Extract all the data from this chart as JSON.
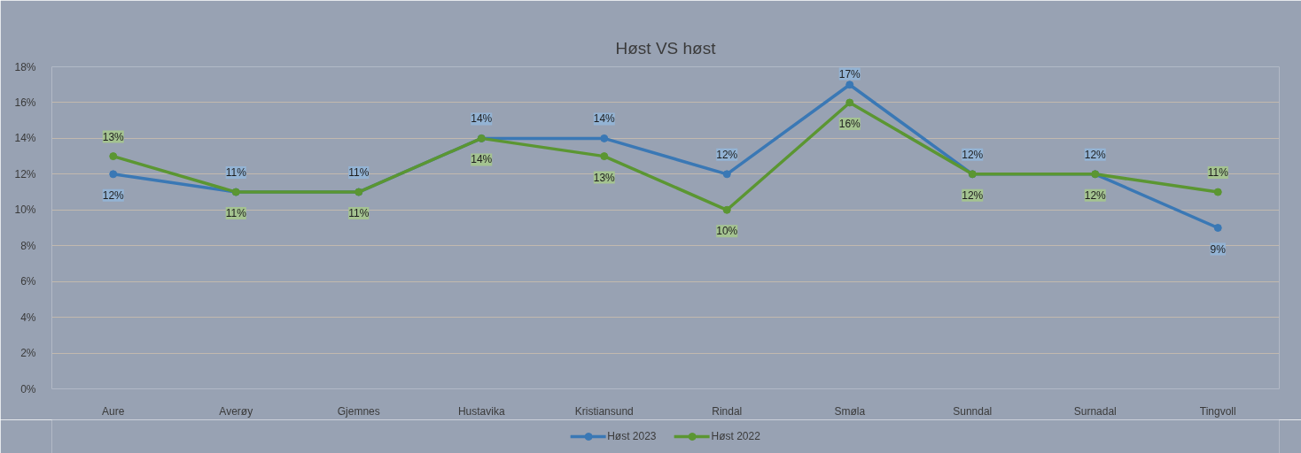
{
  "chart_data": {
    "type": "line",
    "title": "Høst VS høst",
    "categories": [
      "Aure",
      "Averøy",
      "Gjemnes",
      "Hustavika",
      "Kristiansund",
      "Rindal",
      "Smøla",
      "Sunndal",
      "Surnadal",
      "Tingvoll"
    ],
    "series": [
      {
        "name": "Høst 2023",
        "color": "#3a78b5",
        "values": [
          12,
          11,
          11,
          14,
          14,
          12,
          17,
          12,
          12,
          9
        ],
        "value_labels": [
          "12%",
          "11%",
          "11%",
          "14%",
          "14%",
          "12%",
          "17%",
          "12%",
          "12%",
          "9%"
        ]
      },
      {
        "name": "Høst 2022",
        "color": "#5b9632",
        "values": [
          13,
          11,
          11,
          14,
          13,
          10,
          16,
          12,
          12,
          11
        ],
        "value_labels": [
          "13%",
          "11%",
          "11%",
          "14%",
          "13%",
          "10%",
          "16%",
          "12%",
          "12%",
          "11%"
        ]
      }
    ],
    "ylim": [
      0,
      18
    ],
    "yticks": [
      {
        "value": 0,
        "label": "0%"
      },
      {
        "value": 2,
        "label": "2%"
      },
      {
        "value": 4,
        "label": "4%"
      },
      {
        "value": 6,
        "label": "6%"
      },
      {
        "value": 8,
        "label": "8%"
      },
      {
        "value": 10,
        "label": "10%"
      },
      {
        "value": 12,
        "label": "12%"
      },
      {
        "value": 14,
        "label": "14%"
      },
      {
        "value": 16,
        "label": "16%"
      },
      {
        "value": 18,
        "label": "18%"
      }
    ],
    "grid": "y",
    "legend": "bottom",
    "marker": "circle",
    "line_style": "solid"
  }
}
